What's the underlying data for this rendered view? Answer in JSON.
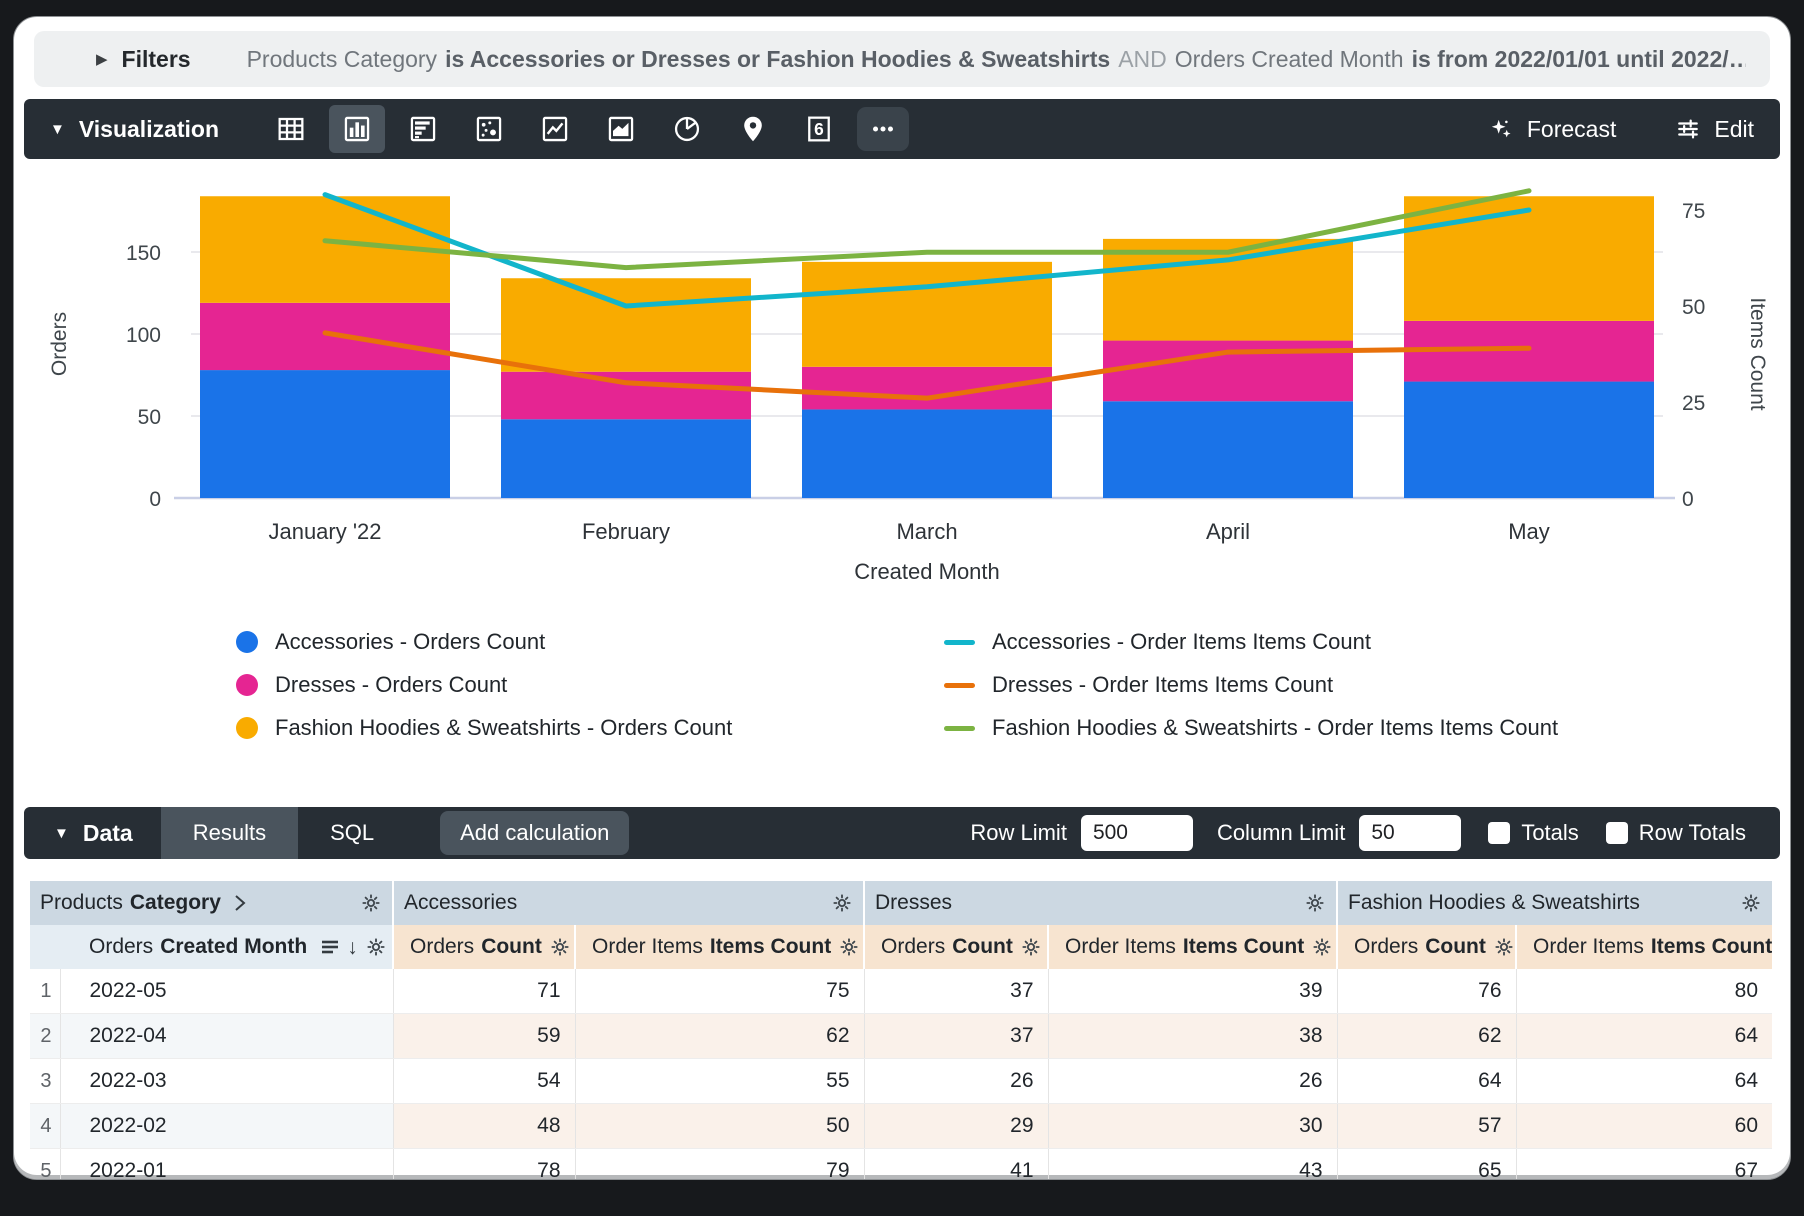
{
  "filters": {
    "label": "Filters",
    "segments": [
      {
        "style": "normal",
        "text": "Products Category"
      },
      {
        "style": "bold",
        "text": "is Accessories or Dresses or Fashion Hoodies & Sweatshirts"
      },
      {
        "style": "light",
        "text": "AND"
      },
      {
        "style": "normal",
        "text": "Orders Created Month"
      },
      {
        "style": "bold",
        "text": "is from 2022/01/01 until 2022/…"
      }
    ]
  },
  "viz": {
    "label": "Visualization",
    "selected_icon": "column",
    "single_value_icon_text": "6",
    "forecast": "Forecast",
    "edit": "Edit"
  },
  "chart_data": {
    "type": "combo-stacked-bar-line",
    "categories": [
      "January '22",
      "February",
      "March",
      "April",
      "May"
    ],
    "x_axis_label": "Created Month",
    "left_axis": {
      "title": "Orders",
      "ticks": [
        0,
        50,
        100,
        150
      ],
      "max": 190
    },
    "right_axis": {
      "title": "Items Count",
      "ticks": [
        0,
        25,
        50,
        75
      ],
      "max": 80
    },
    "legend_position": "bottom",
    "bar_series": [
      {
        "name": "Accessories - Orders Count",
        "color": "#1A73E8",
        "values": [
          78,
          48,
          54,
          59,
          71
        ]
      },
      {
        "name": "Dresses - Orders Count",
        "color": "#E52592",
        "values": [
          41,
          29,
          26,
          37,
          37
        ]
      },
      {
        "name": "Fashion Hoodies & Sweatshirts - Orders Count",
        "color": "#F9AB00",
        "values": [
          65,
          57,
          64,
          62,
          76
        ]
      }
    ],
    "line_series": [
      {
        "name": "Accessories - Order Items Items Count",
        "color": "#12B5CB",
        "values": [
          79,
          50,
          55,
          62,
          75
        ]
      },
      {
        "name": "Dresses - Order Items Items Count",
        "color": "#E8710A",
        "values": [
          43,
          30,
          26,
          38,
          39
        ]
      },
      {
        "name": "Fashion Hoodies & Sweatshirts - Order Items Items Count",
        "color": "#7CB342",
        "values": [
          67,
          60,
          64,
          64,
          80
        ]
      }
    ]
  },
  "data_bar": {
    "label": "Data",
    "tabs": [
      {
        "label": "Results",
        "active": true
      },
      {
        "label": "SQL",
        "active": false
      }
    ],
    "add_calculation": "Add calculation",
    "row_limit_label": "Row Limit",
    "row_limit_value": "500",
    "column_limit_label": "Column Limit",
    "column_limit_value": "50",
    "totals_label": "Totals",
    "totals_checked": false,
    "row_totals_label": "Row Totals",
    "row_totals_checked": false
  },
  "table": {
    "groups": [
      {
        "view": "Products",
        "field": "Category",
        "chevron": true,
        "span": 2
      },
      {
        "label": "Accessories",
        "span": 2
      },
      {
        "label": "Dresses",
        "span": 2
      },
      {
        "label": "Fashion Hoodies & Sweatshirts",
        "span": 2
      }
    ],
    "sub_headers": [
      {
        "view": "Orders",
        "field": "Created Month",
        "type": "dimension",
        "span": 2,
        "sort": true
      },
      {
        "view": "Orders",
        "field": "Count",
        "type": "measure"
      },
      {
        "view": "Order Items",
        "field": "Items Count",
        "type": "measure"
      },
      {
        "view": "Orders",
        "field": "Count",
        "type": "measure"
      },
      {
        "view": "Order Items",
        "field": "Items Count",
        "type": "measure"
      },
      {
        "view": "Orders",
        "field": "Count",
        "type": "measure"
      },
      {
        "view": "Order Items",
        "field": "Items Count",
        "type": "measure"
      }
    ],
    "rows": [
      {
        "n": "1",
        "month": "2022-05",
        "values": [
          "71",
          "75",
          "37",
          "39",
          "76",
          "80"
        ]
      },
      {
        "n": "2",
        "month": "2022-04",
        "values": [
          "59",
          "62",
          "37",
          "38",
          "62",
          "64"
        ]
      },
      {
        "n": "3",
        "month": "2022-03",
        "values": [
          "54",
          "55",
          "26",
          "26",
          "64",
          "64"
        ]
      },
      {
        "n": "4",
        "month": "2022-02",
        "values": [
          "48",
          "50",
          "29",
          "30",
          "57",
          "60"
        ]
      },
      {
        "n": "5",
        "month": "2022-01",
        "values": [
          "78",
          "79",
          "41",
          "43",
          "65",
          "67"
        ]
      }
    ]
  },
  "colors": {
    "toolbar_bg": "#272E35",
    "selected_bg": "#4A545D",
    "group_header_bg": "#CCD8E2",
    "dim_header_bg": "#E5EDF3",
    "measure_header_bg": "#F7E4D0",
    "blue": "#1A73E8",
    "magenta": "#E52592",
    "amber": "#F9AB00",
    "cyan": "#12B5CB",
    "orange": "#E8710A",
    "green": "#7CB342"
  }
}
